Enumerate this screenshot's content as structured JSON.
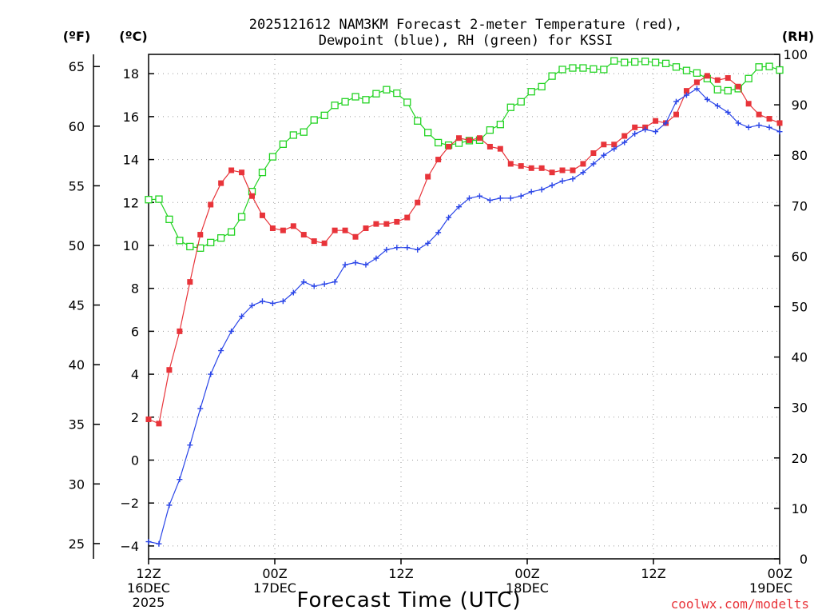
{
  "chart_data": {
    "type": "line",
    "title": [
      "2025121612 NAM3KM Forecast 2-meter Temperature (red),",
      "Dewpoint (blue), RH (green) for KSSI"
    ],
    "xlabel": "Forecast Time (UTC)",
    "credit": "coolwx.com/modelts",
    "left_units_f": "(ºF)",
    "left_units_c": "(ºC)",
    "right_units": "(RH)",
    "x_range_hours": [
      0,
      60
    ],
    "ylim_c": [
      -4.6,
      18.9
    ],
    "ylim_rh": [
      0,
      100
    ],
    "f_ticks": [
      25,
      30,
      35,
      40,
      45,
      50,
      55,
      60,
      65
    ],
    "c_ticks": [
      -4,
      -2,
      0,
      2,
      4,
      6,
      8,
      10,
      12,
      14,
      16,
      18
    ],
    "rh_ticks": [
      0,
      10,
      20,
      30,
      40,
      50,
      60,
      70,
      80,
      90,
      100
    ],
    "x_ticks": [
      {
        "hour": 0,
        "lines": [
          "12Z",
          "16DEC",
          "2025"
        ]
      },
      {
        "hour": 12,
        "lines": [
          "00Z",
          "17DEC"
        ]
      },
      {
        "hour": 24,
        "lines": [
          "12Z"
        ]
      },
      {
        "hour": 36,
        "lines": [
          "00Z",
          "18DEC"
        ]
      },
      {
        "hour": 48,
        "lines": [
          "12Z"
        ]
      },
      {
        "hour": 60,
        "lines": [
          "00Z",
          "19DEC"
        ]
      }
    ],
    "series": [
      {
        "name": "2-meter Temperature",
        "unit": "C",
        "color": "#e8343a",
        "marker": "filled-square",
        "values": [
          1.9,
          1.7,
          4.2,
          6.0,
          8.3,
          10.5,
          11.9,
          12.9,
          13.5,
          13.4,
          12.3,
          11.4,
          10.8,
          10.7,
          10.9,
          10.5,
          10.2,
          10.1,
          10.7,
          10.7,
          10.4,
          10.8,
          11.0,
          11.0,
          11.1,
          11.3,
          12.0,
          13.2,
          14.0,
          14.6,
          15.0,
          14.9,
          15.0,
          14.6,
          14.5,
          13.8,
          13.7,
          13.6,
          13.6,
          13.4,
          13.5,
          13.5,
          13.8,
          14.3,
          14.7,
          14.7,
          15.1,
          15.5,
          15.5,
          15.8,
          15.7,
          16.1,
          17.2,
          17.6,
          17.9,
          17.7,
          17.8,
          17.4,
          16.6,
          16.1,
          15.9,
          15.7
        ]
      },
      {
        "name": "Dewpoint",
        "unit": "C",
        "color": "#2a45e8",
        "marker": "plus",
        "values": [
          -3.8,
          -3.9,
          -2.1,
          -0.9,
          0.7,
          2.4,
          4.0,
          5.1,
          6.0,
          6.7,
          7.2,
          7.4,
          7.3,
          7.4,
          7.8,
          8.3,
          8.1,
          8.2,
          8.3,
          9.1,
          9.2,
          9.1,
          9.4,
          9.8,
          9.9,
          9.9,
          9.8,
          10.1,
          10.6,
          11.3,
          11.8,
          12.2,
          12.3,
          12.1,
          12.2,
          12.2,
          12.3,
          12.5,
          12.6,
          12.8,
          13.0,
          13.1,
          13.4,
          13.8,
          14.2,
          14.5,
          14.8,
          15.2,
          15.4,
          15.3,
          15.7,
          16.7,
          17.0,
          17.3,
          16.8,
          16.5,
          16.2,
          15.7,
          15.5,
          15.6,
          15.5,
          15.3
        ]
      },
      {
        "name": "RH",
        "unit": "%",
        "color": "#22d322",
        "marker": "open-square",
        "values": [
          71.2,
          71.3,
          67.3,
          63.1,
          61.9,
          61.6,
          62.7,
          63.6,
          64.8,
          67.8,
          72.8,
          76.6,
          79.7,
          82.2,
          84.0,
          84.6,
          87.0,
          87.9,
          89.9,
          90.6,
          91.6,
          91.0,
          92.2,
          93.0,
          92.3,
          90.5,
          86.8,
          84.5,
          82.5,
          82.0,
          82.4,
          82.9,
          83.0,
          85.0,
          86.1,
          89.5,
          90.6,
          92.6,
          93.6,
          95.7,
          97.0,
          97.3,
          97.3,
          97.1,
          97.0,
          98.7,
          98.4,
          98.5,
          98.6,
          98.4,
          98.2,
          97.5,
          96.8,
          96.3,
          95.2,
          93.0,
          92.8,
          93.2,
          95.2,
          97.5,
          97.6,
          96.9
        ]
      }
    ]
  }
}
